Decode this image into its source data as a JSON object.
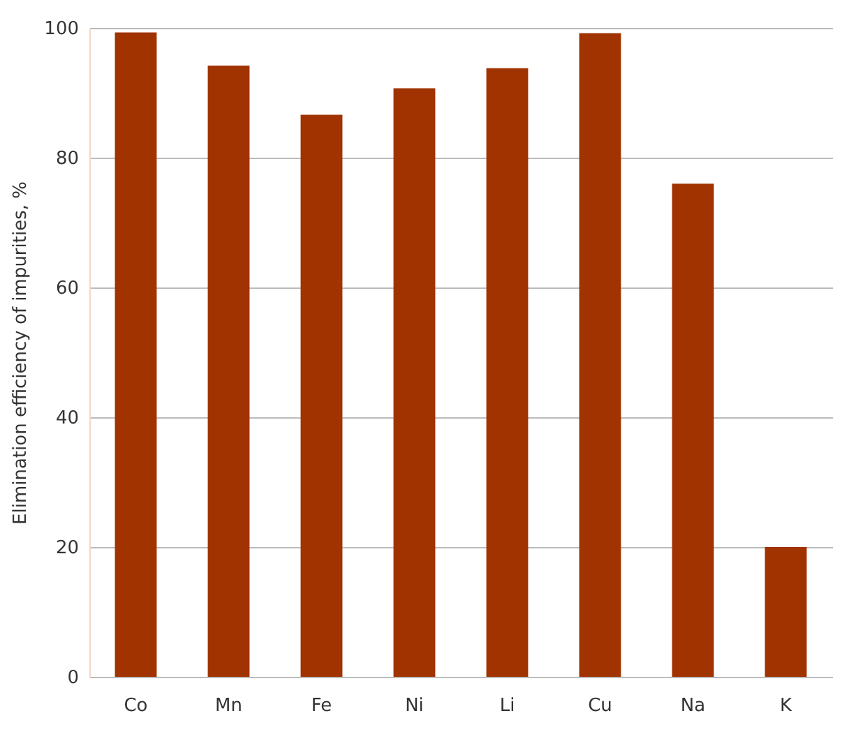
{
  "chart_data": {
    "type": "bar",
    "ylabel": "Elimination efficiency of impurities, %",
    "categories": [
      "Co",
      "Mn",
      "Fe",
      "Ni",
      "Li",
      "Cu",
      "Na",
      "K"
    ],
    "values": [
      99.3,
      94.2,
      86.6,
      90.7,
      93.8,
      99.2,
      76.0,
      20.0
    ],
    "color": "#a03300",
    "ylim": [
      0,
      100
    ],
    "yticks": [
      0,
      20,
      40,
      60,
      80,
      100
    ],
    "grid": "y"
  }
}
